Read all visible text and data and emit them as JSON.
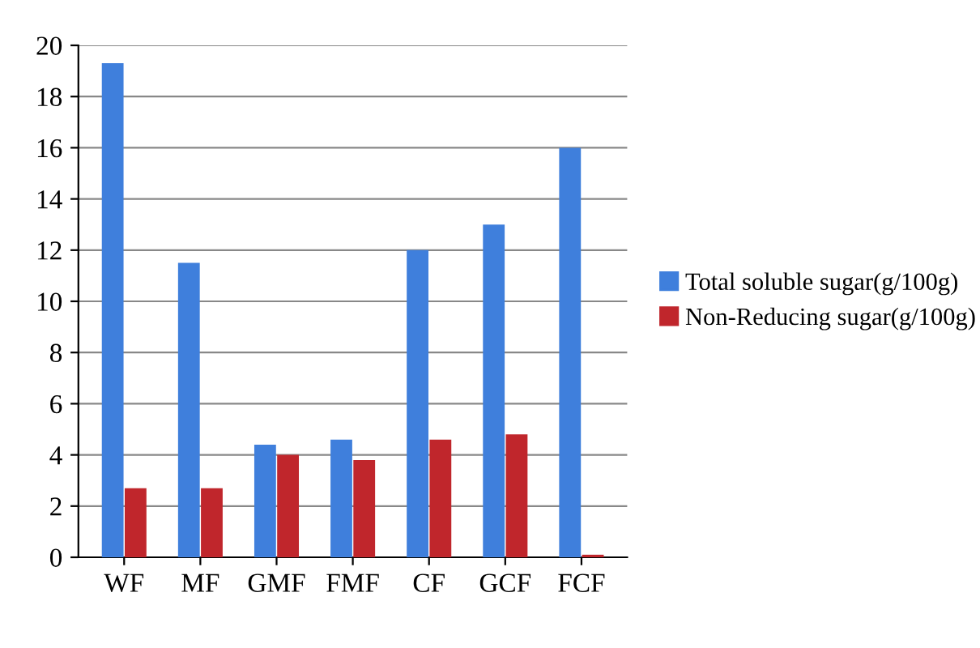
{
  "chart_data": {
    "type": "bar",
    "categories": [
      "WF",
      "MF",
      "GMF",
      "FMF",
      "CF",
      "GCF",
      "FCF"
    ],
    "series": [
      {
        "name": "Total soluble sugar(g/100g)",
        "color": "#3f7fdc",
        "values": [
          19.3,
          11.5,
          4.4,
          4.6,
          12.0,
          13.0,
          16.0
        ]
      },
      {
        "name": "Non-Reducing sugar(g/100g)",
        "color": "#c0262c",
        "values": [
          2.7,
          2.7,
          4.0,
          3.8,
          4.6,
          4.8,
          0.1
        ]
      }
    ],
    "ylim": [
      0,
      20
    ],
    "yticks": [
      0,
      2,
      4,
      6,
      8,
      10,
      12,
      14,
      16,
      18,
      20
    ],
    "grid": "y",
    "legend": "right"
  }
}
